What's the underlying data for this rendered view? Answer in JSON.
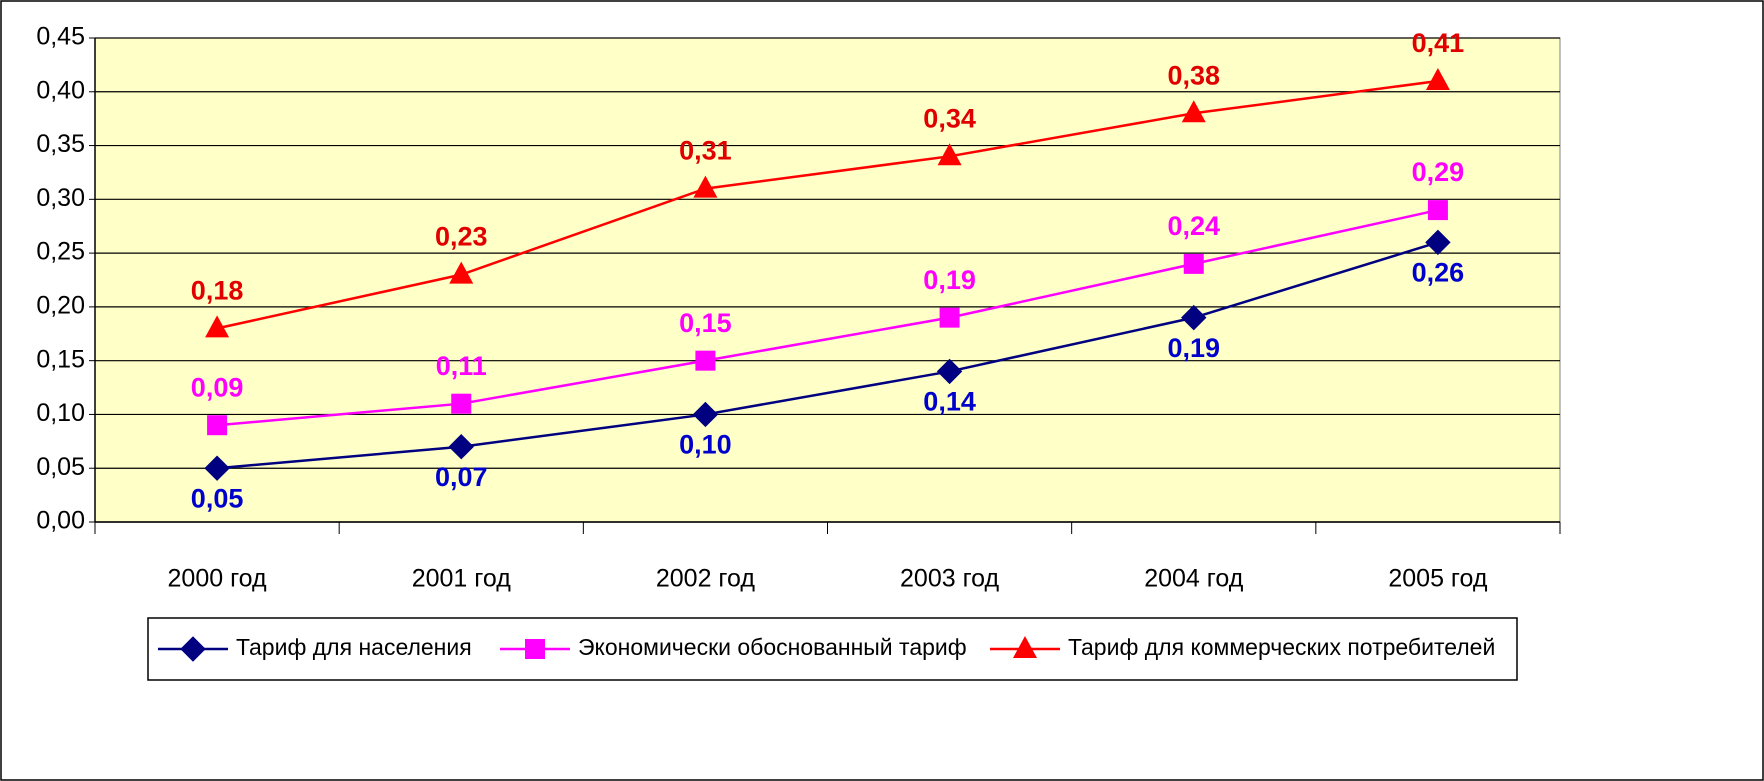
{
  "chart_data": {
    "type": "line",
    "categories": [
      "2000 год",
      "2001 год",
      "2002 год",
      "2003 год",
      "2004 год",
      "2005 год"
    ],
    "series": [
      {
        "name": "Тариф для населения",
        "color": "#000080",
        "label_color": "#0000cc",
        "marker": "diamond",
        "values": [
          0.05,
          0.07,
          0.1,
          0.14,
          0.19,
          0.26
        ],
        "value_labels": [
          "0,05",
          "0,07",
          "0,10",
          "0,14",
          "0,19",
          "0,26"
        ]
      },
      {
        "name": "Экономически обоснованный тариф",
        "color": "#ff00ff",
        "label_color": "#ff00ff",
        "marker": "square",
        "values": [
          0.09,
          0.11,
          0.15,
          0.19,
          0.24,
          0.29
        ],
        "value_labels": [
          "0,09",
          "0,11",
          "0,15",
          "0,19",
          "0,24",
          "0,29"
        ]
      },
      {
        "name": "Тариф для коммерческих  потребителей",
        "color": "#ff0000",
        "label_color": "#e00000",
        "marker": "triangle",
        "values": [
          0.18,
          0.23,
          0.31,
          0.34,
          0.38,
          0.41
        ],
        "value_labels": [
          "0,18",
          "0,23",
          "0,31",
          "0,34",
          "0,38",
          "0,41"
        ]
      }
    ],
    "ylim": [
      0,
      0.45
    ],
    "yticks": [
      {
        "value": 0,
        "label": "0,00"
      },
      {
        "value": 0.05,
        "label": "0,05"
      },
      {
        "value": 0.1,
        "label": "0,10"
      },
      {
        "value": 0.15,
        "label": "0,15"
      },
      {
        "value": 0.2,
        "label": "0,20"
      },
      {
        "value": 0.25,
        "label": "0,25"
      },
      {
        "value": 0.3,
        "label": "0,30"
      },
      {
        "value": 0.35,
        "label": "0,35"
      },
      {
        "value": 0.4,
        "label": "0,40"
      },
      {
        "value": 0.45,
        "label": "0,45"
      }
    ],
    "grid": true,
    "legend": "bottom",
    "plot_background": "#ffffc8"
  }
}
